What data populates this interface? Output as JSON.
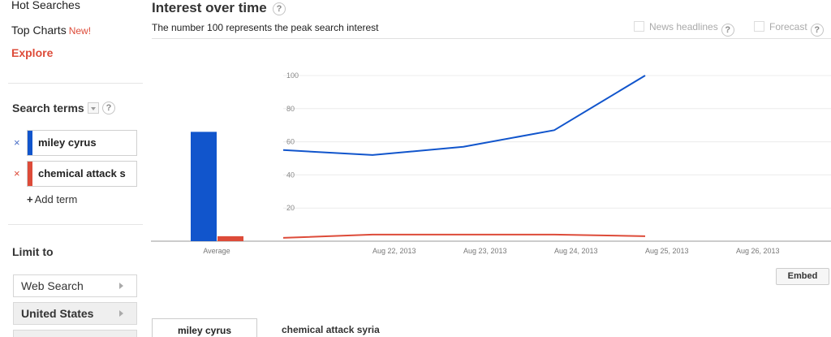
{
  "sidebar": {
    "nav": {
      "hot_searches": "Hot Searches",
      "top_charts": "Top Charts",
      "top_charts_badge": "New!",
      "explore": "Explore"
    },
    "search_terms_title": "Search terms",
    "help_glyph": "?",
    "terms": [
      {
        "label": "miley cyrus",
        "color": "#1155cc",
        "remove": "×"
      },
      {
        "label": "chemical attack s",
        "color": "#dd4b39",
        "remove": "×"
      }
    ],
    "add_term": "Add term",
    "add_term_icon": "+",
    "limit_title": "Limit to",
    "limits": [
      {
        "label": "Web Search"
      },
      {
        "label": "United States"
      },
      {
        "label": ""
      }
    ]
  },
  "header": {
    "title": "Interest over time",
    "subtitle": "The number 100 represents the peak search interest",
    "options": {
      "news_headlines": "News headlines",
      "forecast": "Forecast"
    }
  },
  "embed_label": "Embed",
  "tabs": [
    {
      "label": "miley cyrus"
    },
    {
      "label": "chemical attack syria"
    }
  ],
  "colors": {
    "series_blue": "#1155cc",
    "series_red": "#dd4b39",
    "accent_red": "#dd4b39"
  },
  "chart_data": {
    "type": "line",
    "title": "",
    "xlabel": "",
    "ylabel": "",
    "ylim": [
      0,
      100
    ],
    "yticks": [
      20,
      40,
      60,
      80,
      100
    ],
    "xticks": [
      "Aug 22, 2013",
      "Aug 23, 2013",
      "Aug 24, 2013",
      "Aug 25, 2013",
      "Aug 26, 2013"
    ],
    "x": [
      "Aug 21, 2013",
      "Aug 22, 2013",
      "Aug 23, 2013",
      "Aug 24, 2013",
      "Aug 25, 2013"
    ],
    "series": [
      {
        "name": "miley cyrus",
        "values": [
          55,
          52,
          57,
          67,
          100
        ]
      },
      {
        "name": "chemical attack syria",
        "values": [
          2,
          4,
          4,
          4,
          3
        ]
      }
    ],
    "averages": {
      "label": "Average",
      "values": [
        66,
        3
      ]
    },
    "grid": true
  }
}
